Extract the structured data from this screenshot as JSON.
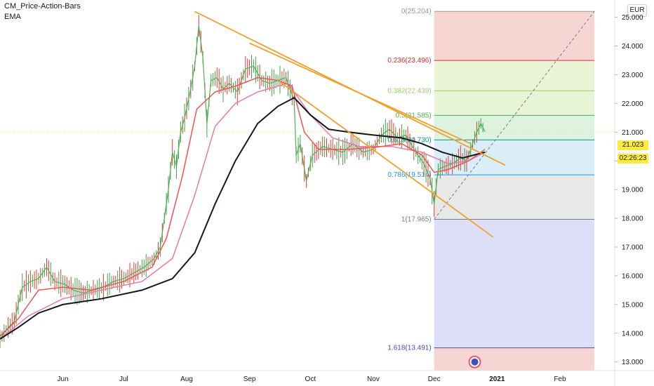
{
  "indicators": [
    "CM_Price-Action-Bars",
    "EMA"
  ],
  "currency": "EUR",
  "last_price": "21.023",
  "countdown": "02:26:23",
  "fib_levels": [
    {
      "ratio": "0",
      "price": 25.204,
      "label": "0(25.204)",
      "color": "#9598a1"
    },
    {
      "ratio": "0.236",
      "price": 23.496,
      "label": "0.236(23.496)",
      "color": "#d32f2f"
    },
    {
      "ratio": "0.382",
      "price": 22.439,
      "label": "0.382(22.439)",
      "color": "#9ccc65"
    },
    {
      "ratio": "0.5",
      "price": 21.585,
      "label": "0.5(21.585)",
      "color": "#4caf50"
    },
    {
      "ratio": "0.618",
      "price": 20.73,
      "label": "0.618(20.730)",
      "color": "#089981"
    },
    {
      "ratio": "0.786",
      "price": 19.514,
      "label": "0.786(19.514)",
      "color": "#2196f3"
    },
    {
      "ratio": "1",
      "price": 17.965,
      "label": "1(17.965)",
      "color": "#787b86"
    },
    {
      "ratio": "1.618",
      "price": 13.491,
      "label": "1.618(13.491)",
      "color": "#3f51b5"
    }
  ],
  "fib_zone_colors": [
    "#f4c7c3",
    "#e3f2c9",
    "#dff2c8",
    "#d2efd5",
    "#cce8f4",
    "#e0e0e0",
    "#d2d4f5",
    "#f4c7c3"
  ],
  "chart_data": {
    "type": "line",
    "y_axis": {
      "min": 12.7,
      "max": 25.6,
      "ticks": [
        13.0,
        14.0,
        15.0,
        16.0,
        17.0,
        18.0,
        19.0,
        20.0,
        21.0,
        22.0,
        23.0,
        24.0,
        25.0
      ],
      "tick_labels": [
        "13.000",
        "14.000",
        "15.000",
        "16.000",
        "17.000",
        "18.000",
        "19.000",
        "20.000",
        "21.000",
        "22.000",
        "23.000",
        "24.000",
        "25.000"
      ]
    },
    "x_axis": {
      "start": "2020-05-01",
      "end": "2021-02-28",
      "tick_labels": [
        {
          "date": "2020-06-01",
          "label": "Jun"
        },
        {
          "date": "2020-07-01",
          "label": "Jul"
        },
        {
          "date": "2020-08-01",
          "label": "Aug"
        },
        {
          "date": "2020-09-01",
          "label": "Sep"
        },
        {
          "date": "2020-10-01",
          "label": "Oct"
        },
        {
          "date": "2020-11-01",
          "label": "Nov"
        },
        {
          "date": "2020-12-01",
          "label": "Dec"
        },
        {
          "date": "2021-01-01",
          "label": "2021"
        },
        {
          "date": "2021-02-01",
          "label": "Feb"
        }
      ]
    },
    "price": {
      "color": "#4caf50",
      "points": [
        [
          "2020-05-01",
          13.8
        ],
        [
          "2020-05-05",
          14.2
        ],
        [
          "2020-05-08",
          14.4
        ],
        [
          "2020-05-12",
          15.6
        ],
        [
          "2020-05-16",
          15.8
        ],
        [
          "2020-05-20",
          15.9
        ],
        [
          "2020-05-24",
          16.3
        ],
        [
          "2020-05-28",
          15.8
        ],
        [
          "2020-06-02",
          15.7
        ],
        [
          "2020-06-06",
          15.5
        ],
        [
          "2020-06-11",
          15.4
        ],
        [
          "2020-06-16",
          15.5
        ],
        [
          "2020-06-21",
          15.6
        ],
        [
          "2020-06-26",
          15.8
        ],
        [
          "2020-07-01",
          15.9
        ],
        [
          "2020-07-06",
          16.1
        ],
        [
          "2020-07-11",
          16.3
        ],
        [
          "2020-07-16",
          16.6
        ],
        [
          "2020-07-19",
          17.0
        ],
        [
          "2020-07-23",
          19.0
        ],
        [
          "2020-07-25",
          20.3
        ],
        [
          "2020-07-27",
          19.8
        ],
        [
          "2020-07-29",
          21.0
        ],
        [
          "2020-07-31",
          21.5
        ],
        [
          "2020-08-03",
          22.5
        ],
        [
          "2020-08-05",
          23.3
        ],
        [
          "2020-08-07",
          24.7
        ],
        [
          "2020-08-09",
          23.6
        ],
        [
          "2020-08-11",
          21.3
        ],
        [
          "2020-08-13",
          22.8
        ],
        [
          "2020-08-16",
          22.9
        ],
        [
          "2020-08-19",
          22.5
        ],
        [
          "2020-08-22",
          22.7
        ],
        [
          "2020-08-26",
          22.4
        ],
        [
          "2020-08-30",
          23.2
        ],
        [
          "2020-09-03",
          23.3
        ],
        [
          "2020-09-07",
          22.8
        ],
        [
          "2020-09-11",
          22.7
        ],
        [
          "2020-09-15",
          22.8
        ],
        [
          "2020-09-19",
          22.9
        ],
        [
          "2020-09-23",
          22.1
        ],
        [
          "2020-09-24",
          20.2
        ],
        [
          "2020-09-26",
          20.6
        ],
        [
          "2020-09-29",
          19.3
        ],
        [
          "2020-10-02",
          20.2
        ],
        [
          "2020-10-07",
          20.5
        ],
        [
          "2020-10-12",
          20.4
        ],
        [
          "2020-10-17",
          20.3
        ],
        [
          "2020-10-22",
          20.6
        ],
        [
          "2020-10-27",
          20.3
        ],
        [
          "2020-11-01",
          20.4
        ],
        [
          "2020-11-05",
          20.9
        ],
        [
          "2020-11-09",
          21.1
        ],
        [
          "2020-11-13",
          20.8
        ],
        [
          "2020-11-17",
          20.9
        ],
        [
          "2020-11-22",
          20.3
        ],
        [
          "2020-11-26",
          19.9
        ],
        [
          "2020-11-29",
          19.4
        ],
        [
          "2020-12-01",
          18.5
        ],
        [
          "2020-12-03",
          19.7
        ],
        [
          "2020-12-06",
          19.8
        ],
        [
          "2020-12-10",
          19.9
        ],
        [
          "2020-12-14",
          20.1
        ],
        [
          "2020-12-17",
          20.0
        ],
        [
          "2020-12-20",
          20.6
        ],
        [
          "2020-12-22",
          21.0
        ],
        [
          "2020-12-24",
          21.3
        ],
        [
          "2020-12-26",
          21.02
        ]
      ]
    },
    "ema_fast": {
      "color": "#ef5350",
      "points": [
        [
          "2020-05-01",
          13.9
        ],
        [
          "2020-05-10",
          14.5
        ],
        [
          "2020-05-20",
          15.5
        ],
        [
          "2020-06-01",
          15.6
        ],
        [
          "2020-06-15",
          15.5
        ],
        [
          "2020-07-01",
          15.8
        ],
        [
          "2020-07-15",
          16.3
        ],
        [
          "2020-07-22",
          17.3
        ],
        [
          "2020-07-30",
          19.5
        ],
        [
          "2020-08-06",
          21.8
        ],
        [
          "2020-08-15",
          22.4
        ],
        [
          "2020-08-25",
          22.6
        ],
        [
          "2020-09-05",
          22.9
        ],
        [
          "2020-09-15",
          22.8
        ],
        [
          "2020-09-22",
          22.6
        ],
        [
          "2020-09-28",
          21.0
        ],
        [
          "2020-10-05",
          20.4
        ],
        [
          "2020-10-20",
          20.4
        ],
        [
          "2020-11-05",
          20.5
        ],
        [
          "2020-11-15",
          20.6
        ],
        [
          "2020-11-25",
          20.2
        ],
        [
          "2020-12-01",
          19.6
        ],
        [
          "2020-12-08",
          19.7
        ],
        [
          "2020-12-18",
          20.0
        ],
        [
          "2020-12-26",
          20.4
        ]
      ]
    },
    "ema_mid": {
      "color": "#e879a8",
      "points": [
        [
          "2020-05-01",
          13.8
        ],
        [
          "2020-05-15",
          14.6
        ],
        [
          "2020-06-01",
          15.2
        ],
        [
          "2020-06-20",
          15.5
        ],
        [
          "2020-07-10",
          15.8
        ],
        [
          "2020-07-25",
          16.6
        ],
        [
          "2020-08-05",
          18.8
        ],
        [
          "2020-08-15",
          21.2
        ],
        [
          "2020-08-25",
          22.0
        ],
        [
          "2020-09-05",
          22.4
        ],
        [
          "2020-09-20",
          22.7
        ],
        [
          "2020-10-01",
          21.6
        ],
        [
          "2020-10-12",
          20.8
        ],
        [
          "2020-10-25",
          20.5
        ],
        [
          "2020-11-10",
          20.5
        ],
        [
          "2020-11-25",
          20.3
        ],
        [
          "2020-12-08",
          19.9
        ],
        [
          "2020-12-18",
          20.0
        ],
        [
          "2020-12-26",
          20.3
        ]
      ]
    },
    "ema_slow": {
      "color": "#131722",
      "points": [
        [
          "2020-05-01",
          13.8
        ],
        [
          "2020-05-10",
          14.2
        ],
        [
          "2020-05-20",
          14.7
        ],
        [
          "2020-06-01",
          15.0
        ],
        [
          "2020-06-20",
          15.2
        ],
        [
          "2020-07-10",
          15.5
        ],
        [
          "2020-07-25",
          15.9
        ],
        [
          "2020-08-05",
          16.8
        ],
        [
          "2020-08-15",
          18.5
        ],
        [
          "2020-08-25",
          20.0
        ],
        [
          "2020-09-05",
          21.3
        ],
        [
          "2020-09-15",
          21.9
        ],
        [
          "2020-09-23",
          22.2
        ],
        [
          "2020-10-01",
          21.6
        ],
        [
          "2020-10-10",
          21.1
        ],
        [
          "2020-10-20",
          21.0
        ],
        [
          "2020-11-01",
          20.9
        ],
        [
          "2020-11-15",
          20.8
        ],
        [
          "2020-11-25",
          20.6
        ],
        [
          "2020-12-05",
          20.3
        ],
        [
          "2020-12-15",
          20.1
        ],
        [
          "2020-12-26",
          20.3
        ]
      ]
    },
    "trendlines": [
      {
        "color": "#f0a02a",
        "start": [
          "2020-08-05",
          25.2
        ],
        "end": [
          "2021-01-05",
          19.85
        ]
      },
      {
        "color": "#f0a02a",
        "start": [
          "2020-09-01",
          24.1
        ],
        "end": [
          "2020-12-19",
          20.6
        ]
      },
      {
        "color": "#f0a02a",
        "start": [
          "2020-09-15",
          22.8
        ],
        "end": [
          "2020-12-30",
          17.35
        ]
      }
    ],
    "fib_projection": {
      "color": "#787b86",
      "start": [
        "2020-12-01",
        17.965
      ],
      "end": [
        "2021-02-18",
        25.204
      ]
    },
    "fib_box": {
      "start": "2020-12-01",
      "end": "2021-02-18"
    },
    "last_price_line": {
      "price": 21.023,
      "color": "#f5e65c"
    }
  }
}
